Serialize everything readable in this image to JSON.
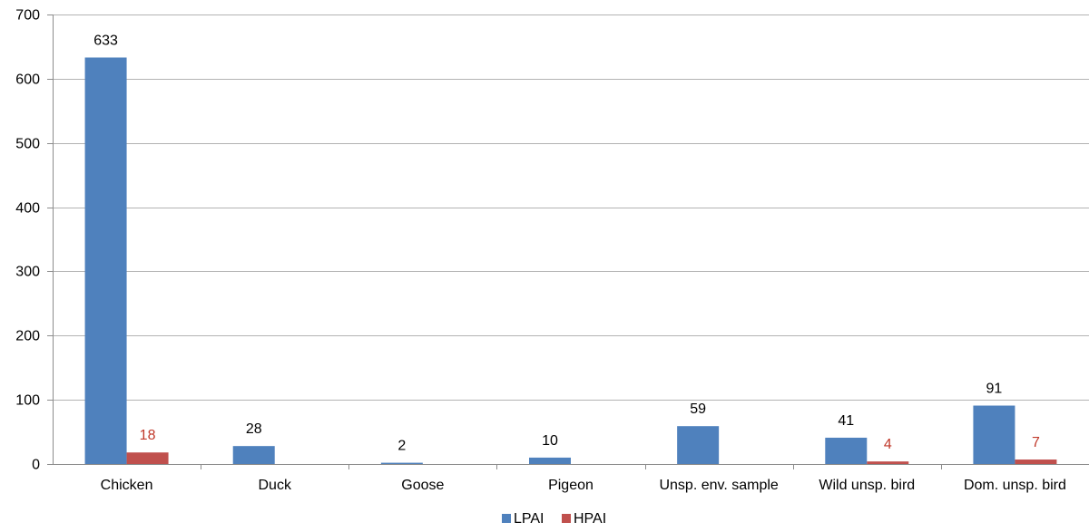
{
  "chart_data": {
    "type": "bar",
    "title": "",
    "xlabel": "",
    "ylabel": "",
    "categories": [
      "Chicken",
      "Duck",
      "Goose",
      "Pigeon",
      "Unsp. env. sample",
      "Wild unsp. bird",
      "Dom. unsp. bird"
    ],
    "series": [
      {
        "name": "LPAI",
        "color": "#4F81BD",
        "label_color": "#000000",
        "values": [
          633,
          28,
          2,
          10,
          59,
          41,
          91
        ],
        "labels": [
          "633",
          "28",
          "2",
          "10",
          "59",
          "41",
          "91"
        ]
      },
      {
        "name": "HPAI",
        "color": "#C0504D",
        "label_color": "#C0392B",
        "values": [
          18,
          null,
          null,
          null,
          null,
          4,
          7
        ],
        "labels": [
          "18",
          null,
          null,
          null,
          null,
          "4",
          "7"
        ]
      }
    ],
    "ylim": [
      0,
      700
    ],
    "yticks": [
      0,
      100,
      200,
      300,
      400,
      500,
      600,
      700
    ],
    "grid": true,
    "legend_position": "bottom"
  }
}
